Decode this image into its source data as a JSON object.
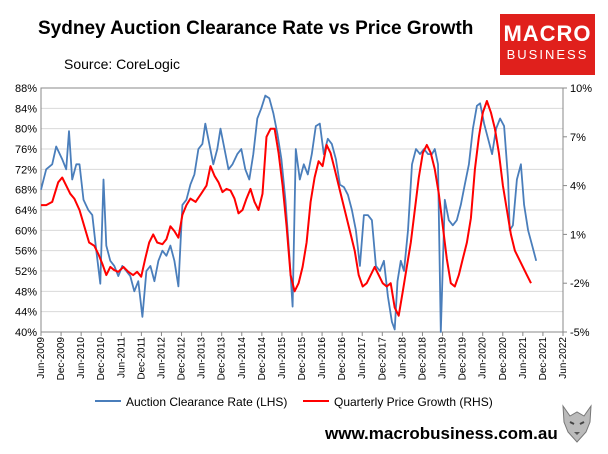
{
  "header": {
    "title": "Sydney Auction Clearance Rate vs Price Growth",
    "subtitle": "Source: CoreLogic"
  },
  "logo": {
    "line1": "MACRO",
    "line2": "BUSINESS",
    "color": "#e0201c"
  },
  "footer": {
    "url": "www.macrobusiness.com.au",
    "mascot_icon": "wolf-icon"
  },
  "chart_data": {
    "type": "line",
    "title": "Sydney Auction Clearance Rate vs Price Growth",
    "x_axis": {
      "ticks": [
        "Jun-2009",
        "Dec-2009",
        "Jun-2010",
        "Dec-2010",
        "Jun-2011",
        "Dec-2011",
        "Jun-2012",
        "Dec-2012",
        "Jun-2013",
        "Dec-2013",
        "Jun-2014",
        "Dec-2014",
        "Jun-2015",
        "Dec-2015",
        "Jun-2016",
        "Dec-2016",
        "Jun-2017",
        "Dec-2017",
        "Jun-2018",
        "Dec-2018",
        "Jun-2019",
        "Dec-2019",
        "Jun-2020",
        "Dec-2020",
        "Jun-2021",
        "Dec-2021",
        "Jun-2022"
      ]
    },
    "y_left": {
      "min": 40,
      "max": 88,
      "step": 4,
      "tick_labels": [
        "40%",
        "44%",
        "48%",
        "52%",
        "56%",
        "60%",
        "64%",
        "68%",
        "72%",
        "76%",
        "80%",
        "84%",
        "88%"
      ]
    },
    "y_right": {
      "min": -5,
      "max": 10,
      "step": 3,
      "tick_labels": [
        "-5%",
        "-2%",
        "1%",
        "4%",
        "7%",
        "10%"
      ]
    },
    "grid": "horizontal",
    "legend_position": "bottom",
    "series": [
      {
        "name": "Auction Clearance Rate (LHS)",
        "axis": "left",
        "color": "#4a7ebb",
        "points": [
          [
            2009.42,
            68
          ],
          [
            2009.55,
            72
          ],
          [
            2009.7,
            73
          ],
          [
            2009.8,
            76.5
          ],
          [
            2009.95,
            74
          ],
          [
            2010.05,
            72
          ],
          [
            2010.12,
            79.5
          ],
          [
            2010.2,
            70
          ],
          [
            2010.3,
            73
          ],
          [
            2010.38,
            73
          ],
          [
            2010.48,
            66
          ],
          [
            2010.6,
            64
          ],
          [
            2010.7,
            63
          ],
          [
            2010.8,
            56
          ],
          [
            2010.9,
            49.5
          ],
          [
            2010.98,
            70
          ],
          [
            2011.05,
            57
          ],
          [
            2011.15,
            54
          ],
          [
            2011.25,
            53
          ],
          [
            2011.35,
            51
          ],
          [
            2011.45,
            53
          ],
          [
            2011.55,
            52
          ],
          [
            2011.65,
            51
          ],
          [
            2011.75,
            48
          ],
          [
            2011.85,
            50
          ],
          [
            2011.95,
            43
          ],
          [
            2012.05,
            52
          ],
          [
            2012.15,
            53
          ],
          [
            2012.25,
            50
          ],
          [
            2012.35,
            54
          ],
          [
            2012.45,
            56
          ],
          [
            2012.55,
            55
          ],
          [
            2012.65,
            57
          ],
          [
            2012.75,
            54
          ],
          [
            2012.85,
            49
          ],
          [
            2012.95,
            65
          ],
          [
            2013.05,
            66
          ],
          [
            2013.15,
            69
          ],
          [
            2013.25,
            71
          ],
          [
            2013.35,
            76
          ],
          [
            2013.45,
            77
          ],
          [
            2013.52,
            81
          ],
          [
            2013.62,
            77
          ],
          [
            2013.72,
            73
          ],
          [
            2013.82,
            76
          ],
          [
            2013.9,
            80
          ],
          [
            2014.0,
            76
          ],
          [
            2014.1,
            72
          ],
          [
            2014.2,
            73
          ],
          [
            2014.32,
            75
          ],
          [
            2014.42,
            76
          ],
          [
            2014.52,
            72
          ],
          [
            2014.62,
            70
          ],
          [
            2014.72,
            75
          ],
          [
            2014.82,
            82
          ],
          [
            2014.92,
            84
          ],
          [
            2015.02,
            86.5
          ],
          [
            2015.12,
            86
          ],
          [
            2015.22,
            83
          ],
          [
            2015.32,
            79
          ],
          [
            2015.42,
            74
          ],
          [
            2015.52,
            66
          ],
          [
            2015.62,
            55
          ],
          [
            2015.7,
            45
          ],
          [
            2015.78,
            76
          ],
          [
            2015.88,
            70
          ],
          [
            2015.98,
            73
          ],
          [
            2016.08,
            71
          ],
          [
            2016.18,
            75
          ],
          [
            2016.28,
            80.5
          ],
          [
            2016.38,
            81
          ],
          [
            2016.48,
            75
          ],
          [
            2016.58,
            78
          ],
          [
            2016.68,
            77
          ],
          [
            2016.78,
            74
          ],
          [
            2016.88,
            69
          ],
          [
            2016.98,
            68.5
          ],
          [
            2017.08,
            67
          ],
          [
            2017.18,
            64
          ],
          [
            2017.28,
            60
          ],
          [
            2017.38,
            53
          ],
          [
            2017.48,
            63
          ],
          [
            2017.58,
            63
          ],
          [
            2017.68,
            62
          ],
          [
            2017.78,
            53
          ],
          [
            2017.88,
            52
          ],
          [
            2017.98,
            54
          ],
          [
            2018.08,
            47
          ],
          [
            2018.18,
            42
          ],
          [
            2018.25,
            40.5
          ],
          [
            2018.32,
            50
          ],
          [
            2018.4,
            54
          ],
          [
            2018.48,
            52
          ],
          [
            2018.58,
            60
          ],
          [
            2018.68,
            73
          ],
          [
            2018.78,
            76
          ],
          [
            2018.88,
            75
          ],
          [
            2018.98,
            76
          ],
          [
            2019.08,
            75
          ],
          [
            2019.18,
            75
          ],
          [
            2019.25,
            76
          ],
          [
            2019.33,
            73
          ],
          [
            2019.4,
            40
          ],
          [
            2019.5,
            66
          ],
          [
            2019.6,
            62
          ],
          [
            2019.7,
            61
          ],
          [
            2019.8,
            62
          ],
          [
            2019.9,
            65
          ],
          [
            2020.0,
            69
          ],
          [
            2020.1,
            73
          ],
          [
            2020.2,
            80
          ],
          [
            2020.3,
            84.5
          ],
          [
            2020.38,
            85
          ],
          [
            2020.48,
            81
          ],
          [
            2020.58,
            78
          ],
          [
            2020.68,
            75
          ],
          [
            2020.78,
            80
          ],
          [
            2020.88,
            82
          ],
          [
            2020.98,
            80.5
          ],
          [
            2021.08,
            70
          ],
          [
            2021.12,
            60
          ],
          [
            2021.2,
            61
          ],
          [
            2021.3,
            70
          ],
          [
            2021.4,
            73
          ],
          [
            2021.48,
            65
          ],
          [
            2021.58,
            60
          ],
          [
            2021.68,
            57
          ],
          [
            2021.78,
            54
          ]
        ]
      },
      {
        "name": "Quarterly Price Growth (RHS)",
        "axis": "right",
        "color": "#ff0000",
        "points": [
          [
            2009.42,
            2.8
          ],
          [
            2009.55,
            2.8
          ],
          [
            2009.7,
            3.0
          ],
          [
            2009.85,
            4.2
          ],
          [
            2009.95,
            4.5
          ],
          [
            2010.05,
            4.0
          ],
          [
            2010.15,
            3.5
          ],
          [
            2010.25,
            3.2
          ],
          [
            2010.38,
            2.5
          ],
          [
            2010.5,
            1.5
          ],
          [
            2010.62,
            0.5
          ],
          [
            2010.75,
            0.3
          ],
          [
            2010.85,
            -0.2
          ],
          [
            2010.95,
            -0.8
          ],
          [
            2011.05,
            -1.5
          ],
          [
            2011.15,
            -1.0
          ],
          [
            2011.25,
            -1.2
          ],
          [
            2011.35,
            -1.3
          ],
          [
            2011.48,
            -1.0
          ],
          [
            2011.6,
            -1.3
          ],
          [
            2011.72,
            -1.5
          ],
          [
            2011.82,
            -1.3
          ],
          [
            2011.92,
            -1.6
          ],
          [
            2012.02,
            -0.5
          ],
          [
            2012.12,
            0.5
          ],
          [
            2012.22,
            1.0
          ],
          [
            2012.32,
            0.5
          ],
          [
            2012.45,
            0.4
          ],
          [
            2012.55,
            0.7
          ],
          [
            2012.65,
            1.5
          ],
          [
            2012.75,
            1.2
          ],
          [
            2012.85,
            0.8
          ],
          [
            2012.95,
            2.2
          ],
          [
            2013.05,
            2.8
          ],
          [
            2013.15,
            3.2
          ],
          [
            2013.28,
            3.0
          ],
          [
            2013.42,
            3.5
          ],
          [
            2013.55,
            4.0
          ],
          [
            2013.65,
            5.2
          ],
          [
            2013.75,
            4.6
          ],
          [
            2013.85,
            4.2
          ],
          [
            2013.95,
            3.6
          ],
          [
            2014.05,
            3.8
          ],
          [
            2014.15,
            3.7
          ],
          [
            2014.25,
            3.2
          ],
          [
            2014.35,
            2.3
          ],
          [
            2014.45,
            2.5
          ],
          [
            2014.55,
            3.2
          ],
          [
            2014.65,
            3.8
          ],
          [
            2014.75,
            3.0
          ],
          [
            2014.85,
            2.5
          ],
          [
            2014.95,
            3.5
          ],
          [
            2015.05,
            7.0
          ],
          [
            2015.15,
            7.5
          ],
          [
            2015.25,
            7.5
          ],
          [
            2015.35,
            6.0
          ],
          [
            2015.45,
            4.0
          ],
          [
            2015.55,
            1.5
          ],
          [
            2015.65,
            -1.5
          ],
          [
            2015.75,
            -2.5
          ],
          [
            2015.85,
            -2.0
          ],
          [
            2015.95,
            -1.0
          ],
          [
            2016.05,
            0.5
          ],
          [
            2016.15,
            3.0
          ],
          [
            2016.25,
            4.5
          ],
          [
            2016.35,
            5.5
          ],
          [
            2016.45,
            5.2
          ],
          [
            2016.55,
            6.5
          ],
          [
            2016.65,
            6.0
          ],
          [
            2016.75,
            5.0
          ],
          [
            2016.85,
            4.0
          ],
          [
            2016.95,
            3.0
          ],
          [
            2017.05,
            2.0
          ],
          [
            2017.15,
            1.0
          ],
          [
            2017.25,
            0.0
          ],
          [
            2017.35,
            -1.5
          ],
          [
            2017.45,
            -2.2
          ],
          [
            2017.55,
            -2.0
          ],
          [
            2017.65,
            -1.5
          ],
          [
            2017.75,
            -1.0
          ],
          [
            2017.85,
            -1.5
          ],
          [
            2017.95,
            -2.0
          ],
          [
            2018.05,
            -2.2
          ],
          [
            2018.15,
            -2.0
          ],
          [
            2018.25,
            -3.5
          ],
          [
            2018.35,
            -4.0
          ],
          [
            2018.45,
            -2.5
          ],
          [
            2018.55,
            -1.0
          ],
          [
            2018.65,
            0.5
          ],
          [
            2018.75,
            2.5
          ],
          [
            2018.85,
            4.5
          ],
          [
            2018.95,
            6.0
          ],
          [
            2019.05,
            6.5
          ],
          [
            2019.15,
            6.0
          ],
          [
            2019.25,
            5.0
          ],
          [
            2019.35,
            3.5
          ],
          [
            2019.45,
            1.5
          ],
          [
            2019.55,
            -0.5
          ],
          [
            2019.65,
            -2.0
          ],
          [
            2019.75,
            -2.2
          ],
          [
            2019.85,
            -1.5
          ],
          [
            2019.95,
            -0.5
          ],
          [
            2020.05,
            0.5
          ],
          [
            2020.15,
            2.0
          ],
          [
            2020.25,
            5.0
          ],
          [
            2020.35,
            7.0
          ],
          [
            2020.45,
            8.5
          ],
          [
            2020.55,
            9.2
          ],
          [
            2020.65,
            8.5
          ],
          [
            2020.75,
            7.5
          ],
          [
            2020.85,
            6.0
          ],
          [
            2020.95,
            4.0
          ],
          [
            2021.05,
            2.5
          ],
          [
            2021.15,
            1.0
          ],
          [
            2021.25,
            0.0
          ],
          [
            2021.35,
            -0.5
          ],
          [
            2021.45,
            -1.0
          ],
          [
            2021.55,
            -1.5
          ],
          [
            2021.65,
            -2.0
          ]
        ]
      }
    ]
  }
}
